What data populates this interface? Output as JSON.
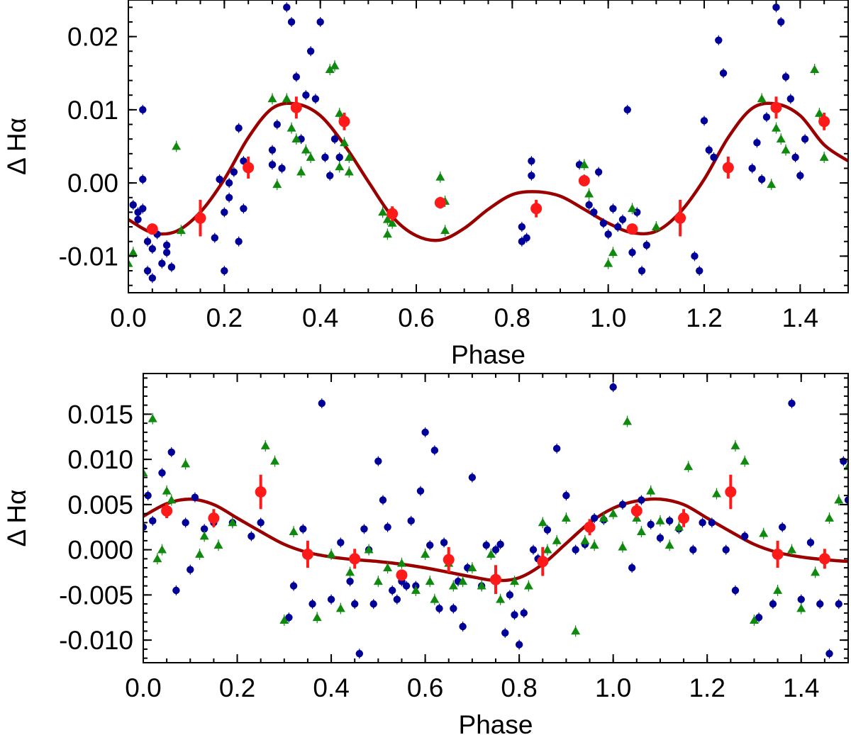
{
  "chart_data": [
    {
      "type": "scatter",
      "panel": "top",
      "xlabel": "Phase",
      "ylabel": "Δ Hα",
      "xlim": [
        0.0,
        1.5
      ],
      "ylim": [
        -0.015,
        0.025
      ],
      "xticks": [
        0.0,
        0.2,
        0.4,
        0.6,
        0.8,
        1.0,
        1.2,
        1.4
      ],
      "xtick_labels": [
        "0.0",
        "0.2",
        "0.4",
        "0.6",
        "0.8",
        "1.0",
        "1.2",
        "1.4"
      ],
      "yticks": [
        -0.01,
        0.0,
        0.01,
        0.02
      ],
      "ytick_labels": [
        "-0.01",
        "0.00",
        "0.01",
        "0.02"
      ],
      "fit": {
        "name": "model fit",
        "color": "#9b0000",
        "x": [
          0.0,
          0.05,
          0.1,
          0.15,
          0.2,
          0.25,
          0.3,
          0.35,
          0.4,
          0.45,
          0.5,
          0.55,
          0.6,
          0.65,
          0.7,
          0.75,
          0.8,
          0.85,
          0.9,
          0.95,
          1.0,
          1.05,
          1.1,
          1.15,
          1.2,
          1.25,
          1.3,
          1.35,
          1.4,
          1.45,
          1.5
        ],
        "y": [
          -0.005,
          -0.0068,
          -0.0066,
          -0.004,
          0.0005,
          0.0062,
          0.0102,
          0.0108,
          0.0092,
          0.0052,
          0.0002,
          -0.0046,
          -0.0072,
          -0.0078,
          -0.0062,
          -0.0036,
          -0.0016,
          -0.0012,
          -0.0018,
          -0.0036,
          -0.0055,
          -0.0068,
          -0.0066,
          -0.004,
          0.0005,
          0.0062,
          0.0102,
          0.0108,
          0.0092,
          0.0052,
          0.003
        ]
      },
      "binned": {
        "name": "binned means",
        "color": "#ff1a1a",
        "x": [
          0.05,
          0.15,
          0.25,
          0.35,
          0.45,
          0.55,
          0.65,
          0.85,
          0.95,
          1.05,
          1.15,
          1.25,
          1.35,
          1.45
        ],
        "y": [
          -0.0063,
          -0.0048,
          0.0021,
          0.0103,
          0.0084,
          -0.0042,
          -0.0027,
          -0.0035,
          0.0003,
          -0.0063,
          -0.0048,
          0.0021,
          0.0103,
          0.0084
        ],
        "err": [
          0.0006,
          0.0025,
          0.0015,
          0.0015,
          0.0012,
          0.001,
          0.0008,
          0.0012,
          0.0006,
          0.0006,
          0.0025,
          0.0015,
          0.0015,
          0.0012
        ]
      },
      "series": [
        {
          "name": "blue circles",
          "color": "#000099",
          "marker": "circle",
          "x": [
            0.01,
            0.02,
            0.02,
            0.03,
            0.03,
            0.04,
            0.04,
            0.05,
            0.05,
            0.06,
            0.07,
            0.08,
            0.08,
            0.09,
            0.03,
            0.2,
            0.2,
            0.21,
            0.21,
            0.22,
            0.23,
            0.23,
            0.24,
            0.24,
            0.19,
            0.18,
            0.3,
            0.3,
            0.31,
            0.32,
            0.33,
            0.34,
            0.35,
            0.36,
            0.37,
            0.38,
            0.39,
            0.4,
            0.41,
            0.42,
            0.43,
            0.44,
            0.82,
            0.82,
            0.83,
            0.84,
            0.84,
            0.94,
            0.95,
            0.96,
            0.97,
            0.98,
            0.99,
            1.0,
            1.01,
            1.02,
            1.03,
            1.04,
            1.05,
            1.06,
            1.07,
            1.08,
            1.2,
            1.21,
            1.22,
            1.23,
            1.24,
            1.18,
            1.19,
            1.3,
            1.31,
            1.32,
            1.33,
            1.35,
            1.36,
            1.37,
            1.38,
            1.39,
            1.4,
            1.41
          ],
          "y": [
            -0.003,
            -0.005,
            -0.004,
            0.0005,
            -0.0035,
            -0.008,
            -0.012,
            -0.009,
            -0.013,
            -0.007,
            -0.011,
            -0.0095,
            -0.0085,
            -0.0115,
            0.01,
            -0.012,
            -0.004,
            0.0,
            -0.002,
            0.0015,
            -0.008,
            0.0075,
            0.003,
            -0.0035,
            0.0005,
            -0.0075,
            0.0045,
            0.0025,
            0.008,
            0.002,
            0.024,
            0.022,
            0.0145,
            0.006,
            0.012,
            0.018,
            0.0115,
            0.022,
            0.0035,
            0.001,
            0.006,
            0.0035,
            -0.006,
            -0.008,
            -0.0075,
            0.003,
            0.001,
            0.0025,
            0.0005,
            -0.003,
            -0.004,
            0.0015,
            -0.0055,
            -0.007,
            -0.0035,
            -0.006,
            -0.005,
            0.01,
            -0.0095,
            -0.004,
            -0.012,
            -0.0085,
            0.0085,
            0.0045,
            0.0035,
            0.0195,
            0.015,
            -0.01,
            -0.012,
            0.002,
            0.0055,
            0.0005,
            0.009,
            0.024,
            0.022,
            0.0145,
            0.0115,
            0.0035,
            0.001,
            0.006
          ]
        },
        {
          "name": "green triangles",
          "color": "#0f8a0f",
          "marker": "triangle",
          "x": [
            0.0,
            0.01,
            0.1,
            0.11,
            0.3,
            0.31,
            0.33,
            0.34,
            0.35,
            0.36,
            0.37,
            0.38,
            0.42,
            0.43,
            0.44,
            0.44,
            0.45,
            0.46,
            0.46,
            0.53,
            0.54,
            0.54,
            0.55,
            0.65,
            0.66,
            0.66,
            0.95,
            0.96,
            1.0,
            1.01,
            1.05,
            1.1,
            1.32,
            1.34,
            1.35,
            1.36,
            1.37,
            1.43,
            1.44,
            1.45
          ],
          "y": [
            -0.011,
            -0.0095,
            0.005,
            -0.0065,
            0.0115,
            -0.0002,
            0.0115,
            0.0075,
            0.006,
            0.0015,
            0.0045,
            0.0035,
            0.0155,
            0.016,
            0.0095,
            0.0022,
            0.0055,
            0.0015,
            0.0035,
            -0.004,
            -0.005,
            -0.007,
            -0.0055,
            0.0008,
            -0.0025,
            -0.0065,
            0.0025,
            -0.0015,
            -0.011,
            -0.0095,
            -0.0035,
            -0.006,
            0.0115,
            -0.0002,
            0.0075,
            0.006,
            0.0045,
            0.0155,
            0.0095,
            0.0035
          ]
        }
      ]
    },
    {
      "type": "scatter",
      "panel": "bottom",
      "xlabel": "Phase",
      "ylabel": "Δ Hα",
      "xlim": [
        0.0,
        1.5
      ],
      "ylim": [
        -0.0125,
        0.0195
      ],
      "xticks": [
        0.0,
        0.2,
        0.4,
        0.6,
        0.8,
        1.0,
        1.2,
        1.4
      ],
      "xtick_labels": [
        "0.0",
        "0.2",
        "0.4",
        "0.6",
        "0.8",
        "1.0",
        "1.2",
        "1.4"
      ],
      "yticks": [
        -0.01,
        -0.005,
        0.0,
        0.005,
        0.01,
        0.015
      ],
      "ytick_labels": [
        "-0.010",
        "-0.005",
        "0.000",
        "0.005",
        "0.010",
        "0.015"
      ],
      "fit": {
        "name": "model fit",
        "color": "#9b0000",
        "x": [
          0.0,
          0.05,
          0.1,
          0.15,
          0.2,
          0.25,
          0.3,
          0.35,
          0.4,
          0.45,
          0.5,
          0.55,
          0.6,
          0.65,
          0.7,
          0.75,
          0.8,
          0.85,
          0.9,
          0.95,
          1.0,
          1.05,
          1.1,
          1.15,
          1.2,
          1.25,
          1.3,
          1.35,
          1.4,
          1.45,
          1.5
        ],
        "y": [
          0.0037,
          0.0051,
          0.0056,
          0.005,
          0.0035,
          0.002,
          0.0006,
          -0.0003,
          -0.0008,
          -0.0011,
          -0.0013,
          -0.0016,
          -0.002,
          -0.0025,
          -0.003,
          -0.0034,
          -0.0031,
          -0.0016,
          0.0007,
          0.003,
          0.0046,
          0.0054,
          0.0056,
          0.005,
          0.0035,
          0.002,
          0.0006,
          -0.0003,
          -0.0008,
          -0.0011,
          -0.0013
        ]
      },
      "binned": {
        "name": "binned means",
        "color": "#ff1a1a",
        "x": [
          0.05,
          0.15,
          0.25,
          0.35,
          0.45,
          0.55,
          0.65,
          0.75,
          0.85,
          0.95,
          1.05,
          1.15,
          1.25,
          1.35,
          1.45
        ],
        "y": [
          0.0043,
          0.0035,
          0.0064,
          -0.0005,
          -0.001,
          -0.0028,
          -0.0011,
          -0.0033,
          -0.0013,
          0.0025,
          0.0043,
          0.0035,
          0.0064,
          -0.0005,
          -0.001
        ],
        "err": [
          0.0008,
          0.001,
          0.0019,
          0.0015,
          0.0011,
          0.0006,
          0.0014,
          0.0016,
          0.0016,
          0.0009,
          0.0008,
          0.001,
          0.0019,
          0.0015,
          0.0011
        ]
      },
      "series": [
        {
          "name": "blue circles",
          "color": "#000099",
          "marker": "circle",
          "x": [
            0.0,
            0.01,
            0.02,
            0.04,
            0.06,
            0.07,
            0.09,
            0.1,
            0.11,
            0.13,
            0.15,
            0.19,
            0.23,
            0.25,
            0.31,
            0.32,
            0.34,
            0.36,
            0.38,
            0.4,
            0.42,
            0.44,
            0.45,
            0.46,
            0.47,
            0.48,
            0.49,
            0.5,
            0.51,
            0.52,
            0.53,
            0.54,
            0.55,
            0.56,
            0.57,
            0.58,
            0.59,
            0.6,
            0.61,
            0.62,
            0.63,
            0.64,
            0.66,
            0.67,
            0.68,
            0.69,
            0.7,
            0.72,
            0.73,
            0.75,
            0.76,
            0.77,
            0.78,
            0.79,
            0.8,
            0.81,
            0.83,
            0.84,
            0.86,
            0.88,
            0.9,
            0.92,
            0.94,
            0.96,
            0.98,
            1.0,
            1.02,
            1.04,
            1.06,
            1.08,
            1.1,
            1.12,
            1.14,
            1.17,
            1.19,
            1.21,
            1.24,
            1.26,
            1.28,
            1.31,
            1.34,
            1.36,
            1.38,
            1.4,
            1.42,
            1.44,
            1.46,
            1.48,
            1.49,
            1.5
          ],
          "y": [
            0.0025,
            0.006,
            0.0032,
            0.0085,
            0.0108,
            -0.0045,
            0.003,
            -0.0022,
            0.0058,
            0.0023,
            0.003,
            0.003,
            0.0015,
            0.003,
            -0.0075,
            -0.004,
            0.0023,
            -0.006,
            0.0162,
            -0.0055,
            0.0008,
            -0.0035,
            -0.006,
            -0.0115,
            0.0023,
            0.0,
            -0.006,
            0.0098,
            0.0055,
            0.0025,
            -0.0045,
            -0.0055,
            -0.0035,
            -0.004,
            0.0032,
            -0.004,
            0.0065,
            0.013,
            0.0005,
            0.011,
            -0.0065,
            0.0008,
            -0.0065,
            -0.0035,
            -0.0085,
            -0.002,
            0.008,
            -0.004,
            0.0005,
            0.0,
            0.0006,
            -0.0092,
            -0.005,
            -0.0072,
            -0.0105,
            -0.007,
            0.0,
            -0.001,
            0.0022,
            0.0112,
            0.006,
            0.0,
            0.0006,
            0.0035,
            0.0033,
            0.018,
            0.005,
            -0.002,
            0.0055,
            0.0028,
            0.0013,
            0.0032,
            0.0023,
            0.0,
            0.003,
            0.003,
            0.0,
            -0.0045,
            0.0015,
            -0.0075,
            -0.006,
            0.0025,
            0.0162,
            -0.0055,
            0.0008,
            -0.006,
            -0.0115,
            -0.006,
            0.0098,
            0.0055
          ]
        },
        {
          "name": "green triangles",
          "color": "#0f8a0f",
          "marker": "triangle",
          "x": [
            0.0,
            0.02,
            0.03,
            0.04,
            0.05,
            0.06,
            0.09,
            0.12,
            0.13,
            0.16,
            0.19,
            0.26,
            0.28,
            0.3,
            0.32,
            0.37,
            0.4,
            0.42,
            0.44,
            0.48,
            0.5,
            0.52,
            0.55,
            0.58,
            0.6,
            0.61,
            0.62,
            0.65,
            0.66,
            0.68,
            0.7,
            0.72,
            0.74,
            0.76,
            0.79,
            0.82,
            0.85,
            0.86,
            0.88,
            0.9,
            0.92,
            0.94,
            0.96,
            0.98,
            1.0,
            1.02,
            1.03,
            1.05,
            1.06,
            1.08,
            1.1,
            1.12,
            1.14,
            1.16,
            1.22,
            1.26,
            1.28,
            1.3,
            1.32,
            1.35,
            1.38,
            1.4,
            1.43,
            1.46,
            1.48,
            1.5
          ],
          "y": [
            0.0085,
            0.0145,
            -0.001,
            0.0,
            0.0065,
            0.0055,
            0.0095,
            -0.0005,
            0.0015,
            0.0005,
            0.003,
            0.0115,
            0.0098,
            -0.0078,
            0.002,
            -0.0075,
            -0.0005,
            -0.0065,
            -0.0025,
            0.0,
            -0.0035,
            -0.002,
            -0.0015,
            -0.0045,
            -0.0005,
            -0.0035,
            -0.0055,
            -0.0015,
            -0.004,
            -0.0035,
            -0.002,
            -0.004,
            -0.0005,
            -0.0055,
            -0.0035,
            -0.004,
            0.003,
            0.0,
            0.001,
            0.0035,
            -0.009,
            0.001,
            0.0005,
            0.0035,
            0.004,
            0.0003,
            0.0142,
            0.0035,
            0.002,
            0.0065,
            0.0032,
            0.0005,
            0.0025,
            0.0092,
            0.0062,
            0.0115,
            0.0098,
            -0.0078,
            0.0018,
            -0.0045,
            0.0,
            -0.0065,
            -0.0025,
            0.0035,
            0.0055,
            0.0092
          ]
        }
      ]
    }
  ]
}
